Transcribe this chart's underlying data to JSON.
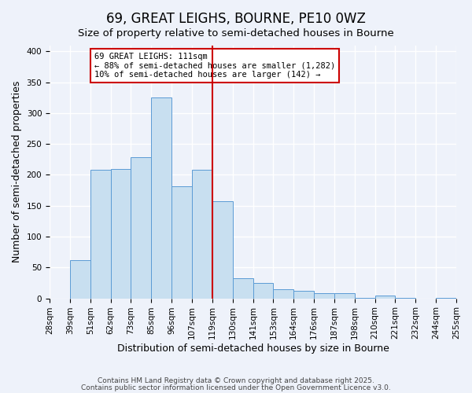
{
  "title": "69, GREAT LEIGHS, BOURNE, PE10 0WZ",
  "subtitle": "Size of property relative to semi-detached houses in Bourne",
  "xlabel": "Distribution of semi-detached houses by size in Bourne",
  "ylabel": "Number of semi-detached properties",
  "bin_labels": [
    "28sqm",
    "39sqm",
    "51sqm",
    "62sqm",
    "73sqm",
    "85sqm",
    "96sqm",
    "107sqm",
    "119sqm",
    "130sqm",
    "141sqm",
    "153sqm",
    "164sqm",
    "176sqm",
    "187sqm",
    "198sqm",
    "210sqm",
    "221sqm",
    "232sqm",
    "244sqm",
    "255sqm"
  ],
  "bar_values": [
    0,
    62,
    208,
    210,
    228,
    325,
    182,
    208,
    157,
    33,
    25,
    15,
    12,
    9,
    9,
    1,
    4,
    1,
    0,
    1
  ],
  "bar_color": "#c8dff0",
  "bar_edge_color": "#5b9bd5",
  "vline_x": 8.0,
  "vline_color": "#cc0000",
  "annotation_title": "69 GREAT LEIGHS: 111sqm",
  "annotation_line2": "← 88% of semi-detached houses are smaller (1,282)",
  "annotation_line3": "10% of semi-detached houses are larger (142) →",
  "annotation_box_color": "#ffffff",
  "annotation_box_edge_color": "#cc0000",
  "ylim": [
    0,
    410
  ],
  "footer1": "Contains HM Land Registry data © Crown copyright and database right 2025.",
  "footer2": "Contains public sector information licensed under the Open Government Licence v3.0.",
  "background_color": "#eef2fa",
  "grid_color": "#ffffff",
  "title_fontsize": 12,
  "subtitle_fontsize": 9.5,
  "axis_label_fontsize": 9,
  "tick_fontsize": 7.5,
  "footer_fontsize": 6.5
}
